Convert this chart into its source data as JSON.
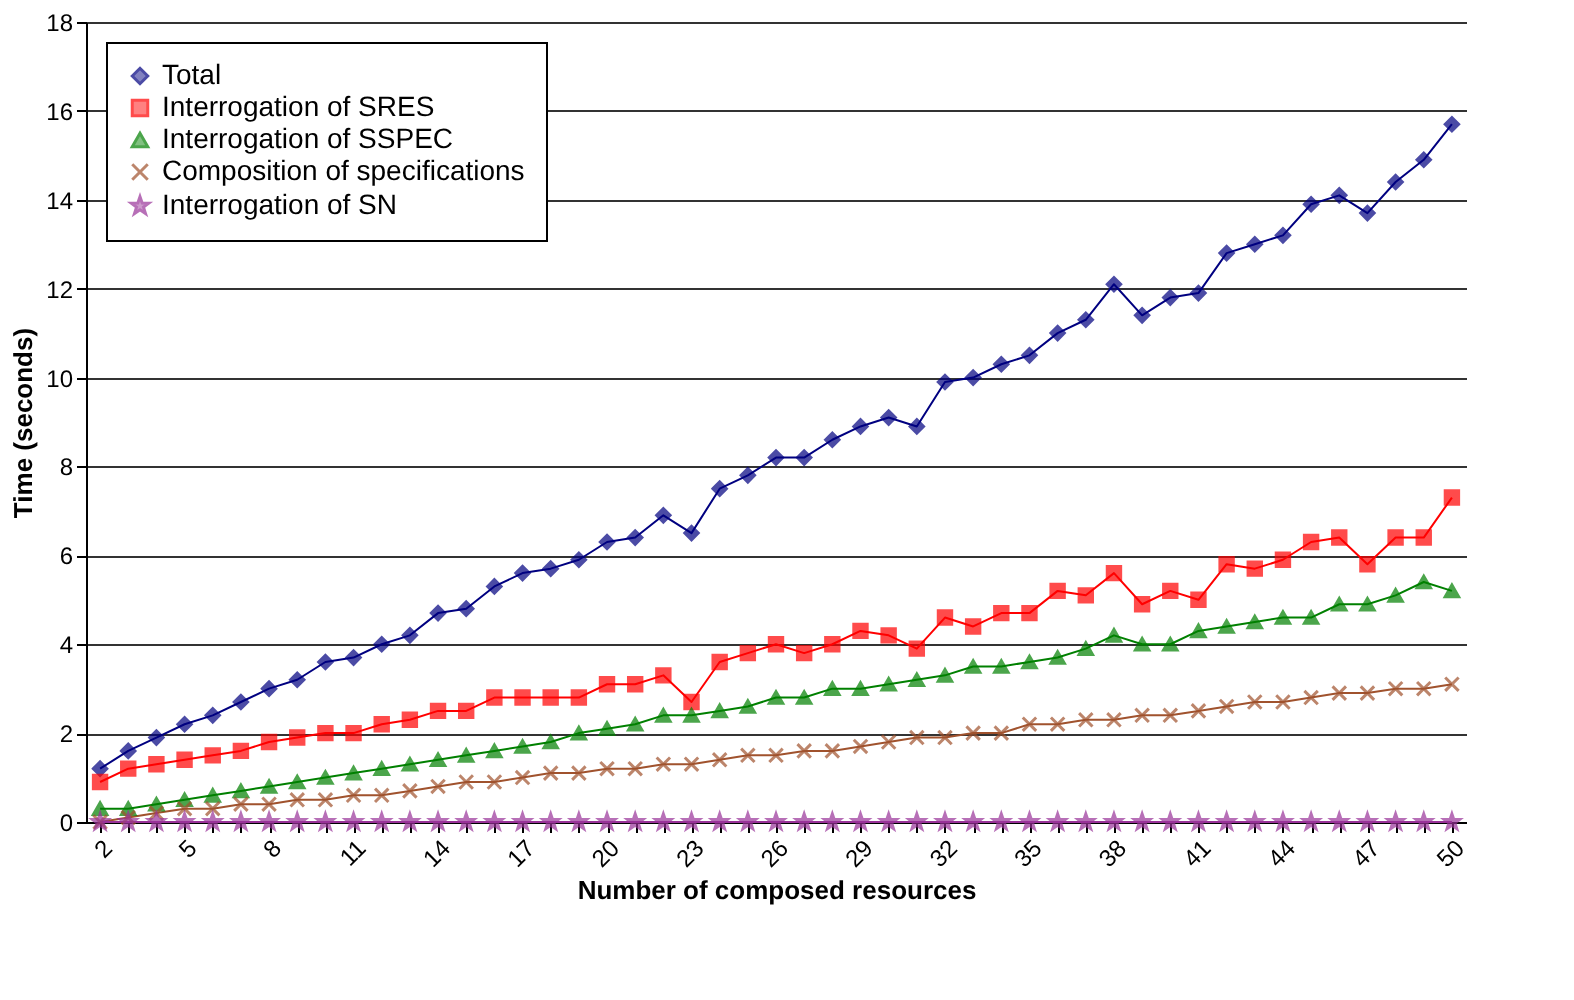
{
  "chart_data": {
    "type": "line",
    "xlabel": "Number of composed resources",
    "ylabel": "Time (seconds)",
    "categories": [
      "2",
      null,
      null,
      "5",
      null,
      null,
      "8",
      null,
      null,
      "11",
      null,
      null,
      "14",
      null,
      null,
      "17",
      null,
      null,
      "20",
      null,
      null,
      "23",
      null,
      null,
      "26",
      null,
      null,
      "29",
      null,
      null,
      "32",
      null,
      null,
      "35",
      null,
      null,
      "38",
      null,
      null,
      "41",
      null,
      null,
      "44",
      null,
      null,
      "47",
      null,
      null,
      "50"
    ],
    "ylim": [
      0,
      18
    ],
    "yticks": [
      0,
      2,
      4,
      6,
      8,
      10,
      12,
      14,
      16,
      18
    ],
    "grid": "y",
    "legend": "top left",
    "line_style": "solid",
    "series": [
      {
        "name": "Total",
        "color": "#000080",
        "marker": "diamond",
        "values": [
          1.2,
          1.6,
          1.9,
          2.2,
          2.4,
          2.7,
          3.0,
          3.2,
          3.6,
          3.7,
          4.0,
          4.2,
          4.7,
          4.8,
          5.3,
          5.6,
          5.7,
          5.9,
          6.3,
          6.4,
          6.9,
          6.5,
          7.5,
          7.8,
          8.2,
          8.2,
          8.6,
          8.9,
          9.1,
          8.9,
          9.9,
          10.0,
          10.3,
          10.5,
          11.0,
          11.3,
          12.1,
          11.4,
          11.8,
          11.9,
          12.8,
          13.0,
          13.2,
          13.9,
          14.1,
          13.7,
          14.4,
          14.9,
          15.7
        ]
      },
      {
        "name": "Interrogation of SRES",
        "color": "#ff0000",
        "marker": "square",
        "values": [
          0.9,
          1.2,
          1.3,
          1.4,
          1.5,
          1.6,
          1.8,
          1.9,
          2.0,
          2.0,
          2.2,
          2.3,
          2.5,
          2.5,
          2.8,
          2.8,
          2.8,
          2.8,
          3.1,
          3.1,
          3.3,
          2.7,
          3.6,
          3.8,
          4.0,
          3.8,
          4.0,
          4.3,
          4.2,
          3.9,
          4.6,
          4.4,
          4.7,
          4.7,
          5.2,
          5.1,
          5.6,
          4.9,
          5.2,
          5.0,
          5.8,
          5.7,
          5.9,
          6.3,
          6.4,
          5.8,
          6.4,
          6.4,
          7.3
        ]
      },
      {
        "name": "Interrogation of SSPEC",
        "color": "#008000",
        "marker": "triangle",
        "values": [
          0.3,
          0.3,
          0.4,
          0.5,
          0.6,
          0.7,
          0.8,
          0.9,
          1.0,
          1.1,
          1.2,
          1.3,
          1.4,
          1.5,
          1.6,
          1.7,
          1.8,
          2.0,
          2.1,
          2.2,
          2.4,
          2.4,
          2.5,
          2.6,
          2.8,
          2.8,
          3.0,
          3.0,
          3.1,
          3.2,
          3.3,
          3.5,
          3.5,
          3.6,
          3.7,
          3.9,
          4.2,
          4.0,
          4.0,
          4.3,
          4.4,
          4.5,
          4.6,
          4.6,
          4.9,
          4.9,
          5.1,
          5.4,
          5.2
        ]
      },
      {
        "name": "Composition of specifications",
        "color": "#a0522d",
        "marker": "cross",
        "values": [
          0.0,
          0.1,
          0.2,
          0.3,
          0.3,
          0.4,
          0.4,
          0.5,
          0.5,
          0.6,
          0.6,
          0.7,
          0.8,
          0.9,
          0.9,
          1.0,
          1.1,
          1.1,
          1.2,
          1.2,
          1.3,
          1.3,
          1.4,
          1.5,
          1.5,
          1.6,
          1.6,
          1.7,
          1.8,
          1.9,
          1.9,
          2.0,
          2.0,
          2.2,
          2.2,
          2.3,
          2.3,
          2.4,
          2.4,
          2.5,
          2.6,
          2.7,
          2.7,
          2.8,
          2.9,
          2.9,
          3.0,
          3.0,
          3.1
        ]
      },
      {
        "name": "Interrogation of SN",
        "color": "#993399",
        "marker": "star",
        "values": [
          0,
          0,
          0,
          0,
          0,
          0,
          0,
          0,
          0,
          0,
          0,
          0,
          0,
          0,
          0,
          0,
          0,
          0,
          0,
          0,
          0,
          0,
          0,
          0,
          0,
          0,
          0,
          0,
          0,
          0,
          0,
          0,
          0,
          0,
          0,
          0,
          0,
          0,
          0,
          0,
          0,
          0,
          0,
          0,
          0,
          0,
          0,
          0,
          0
        ]
      }
    ]
  }
}
